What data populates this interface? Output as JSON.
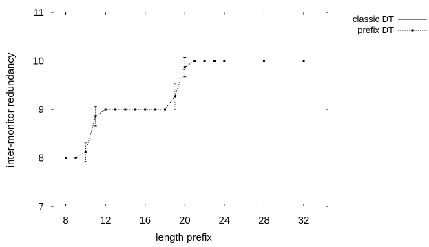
{
  "chart_data": {
    "type": "line",
    "title": "",
    "xlabel": "length prefix",
    "ylabel": "inter-monitor redundancy",
    "xlim": [
      6.5,
      34.5
    ],
    "ylim": [
      7,
      11
    ],
    "xticks": [
      8,
      12,
      16,
      20,
      24,
      28,
      32
    ],
    "xtick_labels": [
      "8",
      "12",
      "16",
      "20",
      "24",
      "28",
      "32"
    ],
    "yticks": [
      7,
      8,
      9,
      10,
      11
    ],
    "ytick_labels": [
      "7",
      "8",
      "9",
      "10",
      "11"
    ],
    "grid": false,
    "legend": {
      "placement": "top-right-outside",
      "entries": [
        "classic DT",
        "prefix DT"
      ]
    },
    "series": [
      {
        "name": "classic DT",
        "style": "solid",
        "color": "#000000",
        "x": [
          6.5,
          34.5
        ],
        "y": [
          10,
          10
        ]
      },
      {
        "name": "prefix DT",
        "style": "dotted",
        "marker": "square",
        "color": "#000000",
        "x": [
          8,
          9,
          10,
          11,
          12,
          13,
          14,
          15,
          16,
          17,
          18,
          19,
          20,
          21,
          22,
          23,
          24,
          28,
          32
        ],
        "y": [
          8.0,
          8.0,
          8.12,
          8.86,
          9.0,
          9.0,
          9.0,
          9.0,
          9.0,
          9.0,
          9.0,
          9.27,
          9.87,
          10.0,
          10.0,
          10.0,
          10.0,
          10.0,
          10.0
        ],
        "error": [
          0,
          0,
          0.2,
          0.2,
          0,
          0,
          0,
          0,
          0,
          0,
          0,
          0.27,
          0.2,
          0,
          0,
          0,
          0,
          0,
          0
        ]
      }
    ]
  }
}
